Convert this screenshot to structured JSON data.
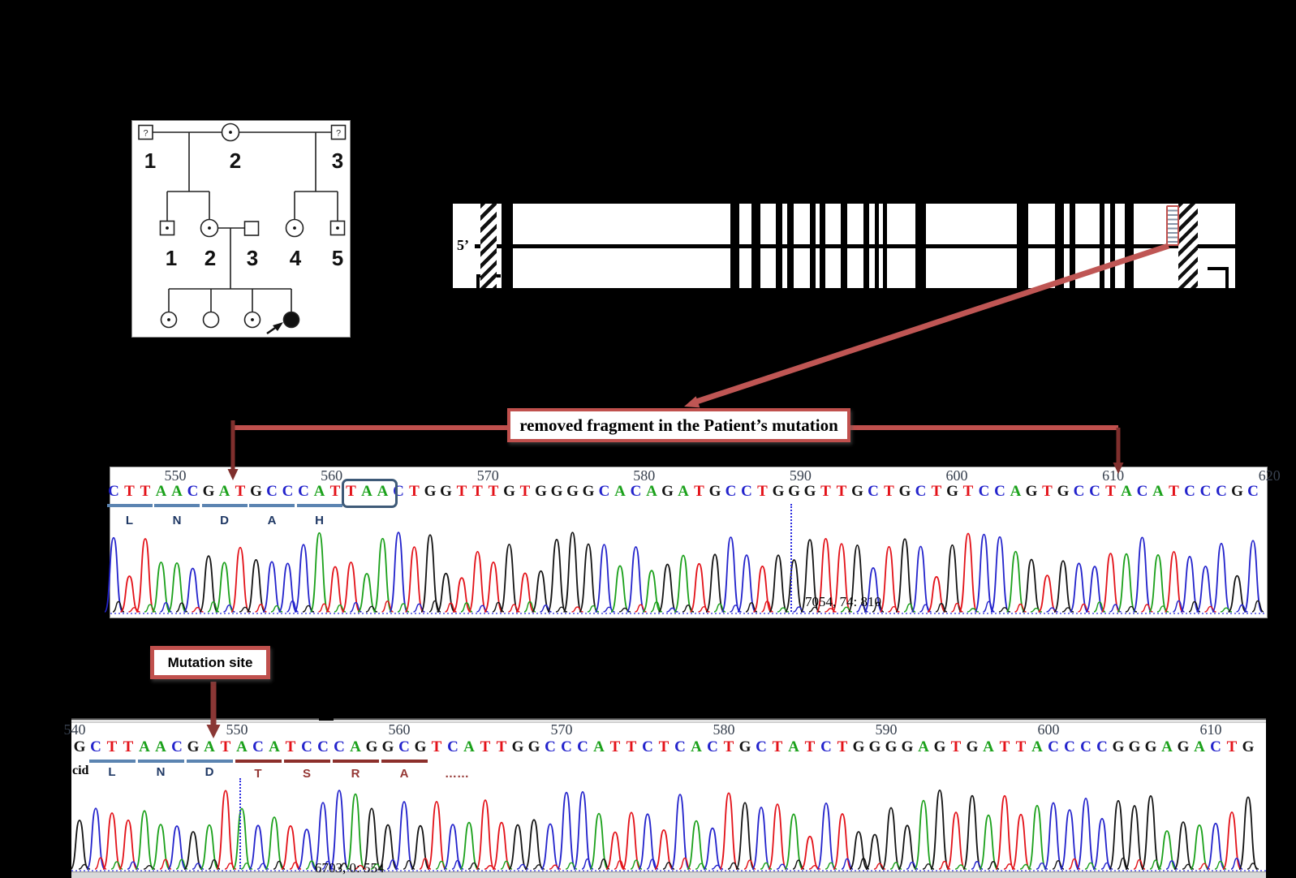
{
  "colors": {
    "accent_red": "#c0504d",
    "dark_red": "#7f2f2d",
    "arrow_red": "#bf5654",
    "base_A": "#1ba11b",
    "base_C": "#2323cc",
    "base_G": "#141414",
    "base_T": "#e31219",
    "codon_blue": "#5b84b1",
    "codon_red": "#8c2f2b",
    "amino_navy": "#1f3864",
    "amino_red": "#953734",
    "tick_color": "#38414f",
    "dotted_blue": "#2a2ae0"
  },
  "pedigree": {
    "generation1_labels": [
      "1",
      "2",
      "3"
    ],
    "generation2_labels": [
      "1",
      "2",
      "3",
      "4",
      "5"
    ],
    "unknown_mark": "?"
  },
  "gene_diagram": {
    "five_prime_label": "5’",
    "hatched_regions": [
      {
        "x": 0.035,
        "w": 0.021
      },
      {
        "x": 0.9275,
        "w": 0.0249
      }
    ],
    "removed_marker": {
      "x": 0.9115,
      "w": 0.0125
    },
    "exons": [
      {
        "x": 0.062,
        "w": 0.0145
      },
      {
        "x": 0.355,
        "w": 0.0114
      },
      {
        "x": 0.382,
        "w": 0.0114
      },
      {
        "x": 0.413,
        "w": 0.0083
      },
      {
        "x": 0.427,
        "w": 0.0083
      },
      {
        "x": 0.456,
        "w": 0.0073
      },
      {
        "x": 0.469,
        "w": 0.0073
      },
      {
        "x": 0.496,
        "w": 0.0083
      },
      {
        "x": 0.525,
        "w": 0.0073
      },
      {
        "x": 0.539,
        "w": 0.0052
      },
      {
        "x": 0.55,
        "w": 0.0052
      },
      {
        "x": 0.591,
        "w": 0.0135
      },
      {
        "x": 0.721,
        "w": 0.0145
      },
      {
        "x": 0.77,
        "w": 0.0114
      },
      {
        "x": 0.788,
        "w": 0.0073
      },
      {
        "x": 0.827,
        "w": 0.0062
      },
      {
        "x": 0.84,
        "w": 0.0062
      },
      {
        "x": 0.859,
        "w": 0.0114
      }
    ]
  },
  "annotations": {
    "removed_fragment_label": "removed fragment in the  Patient’s mutation",
    "mutation_site_label": "Mutation site"
  },
  "chromatogram_top": {
    "sequence": "CTTAACGATGCCCATTAACTGGTTTGTGGGGCACAGATGCCTGGGTTGCTGCTGTCCAGTGCCTACATCCCGC",
    "ticks": [
      550,
      560,
      570,
      580,
      590,
      600,
      610,
      620
    ],
    "boxed_codon": {
      "start": 15,
      "end": 17,
      "text": "TAA"
    },
    "codons_blue": [
      [
        0,
        2
      ],
      [
        3,
        5
      ],
      [
        6,
        8
      ],
      [
        9,
        11
      ],
      [
        12,
        14
      ]
    ],
    "amino_blue": [
      "L",
      "N",
      "D",
      "A",
      "H"
    ],
    "readout": "7054, 74: 810"
  },
  "chromatogram_bottom": {
    "sequence": "GCTTAACGATACATCCCAGGCGTCATTGGCCCATTCTCACTGCTATCTGGGGAGTGATTACCCCGGGAGACTG",
    "ticks": [
      540,
      550,
      560,
      570,
      580,
      590,
      600,
      610
    ],
    "codons_blue": [
      [
        1,
        3
      ],
      [
        4,
        6
      ],
      [
        7,
        9
      ]
    ],
    "codons_red": [
      [
        10,
        12
      ],
      [
        13,
        15
      ],
      [
        16,
        18
      ],
      [
        19,
        21
      ]
    ],
    "amino_blue": [
      "L",
      "N",
      "D"
    ],
    "amino_red": [
      "T",
      "S",
      "R",
      "A"
    ],
    "ellipsis": "……",
    "partial_left_text": "cid",
    "readout": "6703, 0: 554"
  }
}
